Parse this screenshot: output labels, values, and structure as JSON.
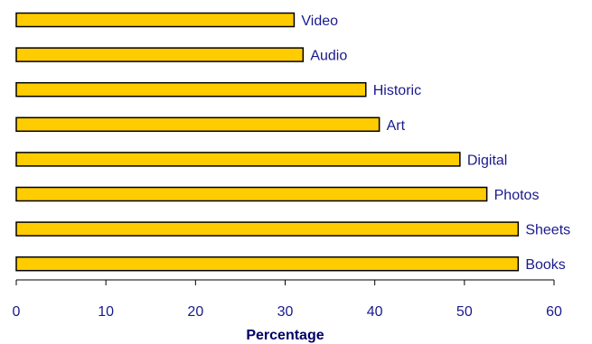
{
  "chart_data": {
    "type": "bar",
    "orientation": "horizontal",
    "categories": [
      "Video",
      "Audio",
      "Historic",
      "Art",
      "Digital",
      "Photos",
      "Sheets",
      "Books"
    ],
    "values": [
      31,
      32,
      39,
      40.5,
      49.5,
      52.5,
      56,
      56
    ],
    "xlabel": "Percentage",
    "ylabel": "",
    "xlim": [
      0,
      60
    ],
    "xticks": [
      0,
      10,
      20,
      30,
      40,
      50,
      60
    ],
    "grid": false,
    "bar_color": "#ffcc00",
    "bar_edge_color": "#000000",
    "label_color": "#1a1a8c"
  }
}
